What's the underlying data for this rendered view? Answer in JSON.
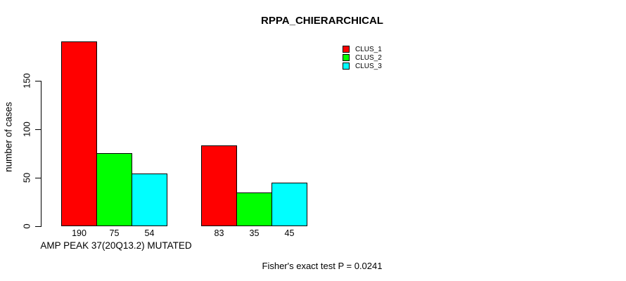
{
  "chart_data": {
    "type": "bar",
    "title": "RPPA_CHIERARCHICAL",
    "ylabel": "number of cases",
    "yticks": [
      0,
      50,
      100,
      150
    ],
    "ylim": [
      0,
      190
    ],
    "groups": [
      "AMP PEAK 37(20Q13.2) MUTATED",
      ""
    ],
    "series": [
      {
        "name": "CLUS_1",
        "color": "#ff0000",
        "values": [
          190,
          83
        ]
      },
      {
        "name": "CLUS_2",
        "color": "#00ff00",
        "values": [
          75,
          35
        ]
      },
      {
        "name": "CLUS_3",
        "color": "#00ffff",
        "values": [
          54,
          45
        ]
      }
    ],
    "bar_value_labels": true,
    "grid": false,
    "legend_position": "top-right",
    "annotation": "Fisher's exact test P = 0.0241",
    "axis_color": "#000000",
    "background_color": "#ffffff"
  }
}
